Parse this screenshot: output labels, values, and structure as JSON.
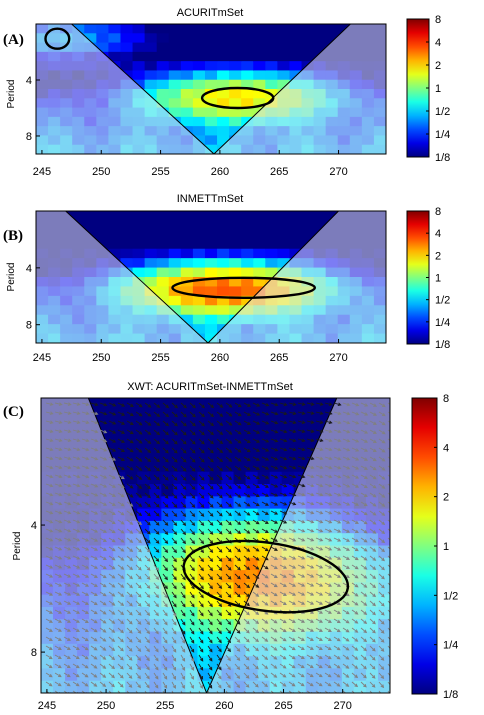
{
  "chart_data": [
    {
      "panel_label": "(A)",
      "type": "heatmap",
      "title": "ACURITmSet",
      "xlabel": "",
      "ylabel": "Period",
      "x_ticks": [
        245,
        250,
        255,
        260,
        265,
        270
      ],
      "y_ticks": [
        "4",
        "8"
      ],
      "xlim": [
        244.5,
        274
      ],
      "ylim_period": [
        2,
        10
      ],
      "y_scale": "log2",
      "colorbar": {
        "labels": [
          "8",
          "4",
          "2",
          "1",
          "1/2",
          "1/4",
          "1/8"
        ],
        "values": [
          8,
          4,
          2,
          1,
          0.5,
          0.25,
          0.125
        ],
        "scale": "log2",
        "colormap": "jet"
      },
      "cone_of_influence": {
        "apex_x": 259.5,
        "left_top_x": 247.5,
        "right_top_x": 271.0
      },
      "significance_contours": [
        {
          "center_x": 246.3,
          "center_period": 2.4,
          "x_halfwidth": 1.0
        },
        {
          "center_x": 261.5,
          "center_period": 5.0,
          "x_halfwidth": 3.0
        }
      ],
      "hotspots": [
        {
          "x": 261.5,
          "period": 5.0,
          "power": 1.6
        },
        {
          "x": 246.5,
          "period": 2.4,
          "power": 0.35
        }
      ],
      "phase_arrows": false
    },
    {
      "panel_label": "(B)",
      "type": "heatmap",
      "title": "INMETTmSet",
      "xlabel": "",
      "ylabel": "Period",
      "x_ticks": [
        245,
        250,
        255,
        260,
        265,
        270
      ],
      "y_ticks": [
        "4",
        "8"
      ],
      "xlim": [
        244.5,
        274
      ],
      "ylim_period": [
        2,
        10
      ],
      "y_scale": "log2",
      "colorbar": {
        "labels": [
          "8",
          "4",
          "2",
          "1",
          "1/2",
          "1/4",
          "1/8"
        ],
        "values": [
          8,
          4,
          2,
          1,
          0.5,
          0.25,
          0.125
        ],
        "scale": "log2",
        "colormap": "jet"
      },
      "cone_of_influence": {
        "apex_x": 259.0,
        "left_top_x": 247.0,
        "right_top_x": 270.0
      },
      "significance_contours": [
        {
          "center_x": 262.0,
          "center_period": 5.1,
          "x_halfwidth": 6.0
        }
      ],
      "hotspots": [
        {
          "x": 260.5,
          "period": 5.2,
          "power": 3.0
        }
      ],
      "phase_arrows": false
    },
    {
      "panel_label": "(C)",
      "type": "heatmap",
      "title": "XWT: ACURITmSet-INMETTmSet",
      "xlabel": "",
      "ylabel": "Period",
      "x_ticks": [
        245,
        250,
        255,
        260,
        265,
        270
      ],
      "y_ticks": [
        "4",
        "8"
      ],
      "xlim": [
        244.5,
        274
      ],
      "ylim_period": [
        2,
        10
      ],
      "y_scale": "log2",
      "colorbar": {
        "labels": [
          "8",
          "4",
          "2",
          "1",
          "1/2",
          "1/4",
          "1/8"
        ],
        "values": [
          8,
          4,
          2,
          1,
          0.5,
          0.25,
          0.125
        ],
        "scale": "log2",
        "colormap": "jet"
      },
      "cone_of_influence": {
        "apex_x": 258.5,
        "left_top_x": 248.5,
        "right_top_x": 269.5
      },
      "significance_contours": [
        {
          "center_x": 263.5,
          "center_period": 5.3,
          "x_halfwidth": 7.0
        }
      ],
      "hotspots": [
        {
          "x": 261.5,
          "period": 5.2,
          "power": 1.8
        },
        {
          "x": 266.0,
          "period": 5.6,
          "power": 1.0
        }
      ],
      "phase_arrows": true
    }
  ]
}
